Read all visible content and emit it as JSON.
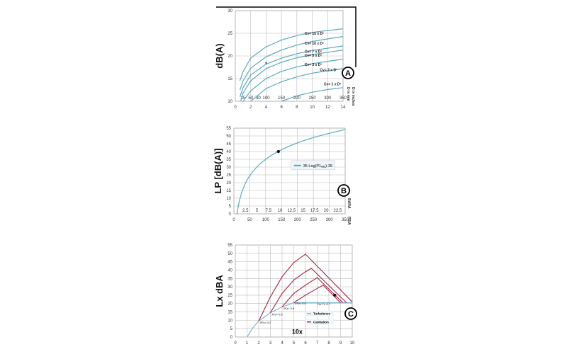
{
  "chart_data": [
    {
      "type": "line",
      "panel": "A",
      "ylabel": "dB(A)",
      "secondary_xlabel": "D in mm",
      "xlabel_right": "D in inches",
      "xlim": [
        0,
        14
      ],
      "ylim": [
        10,
        30
      ],
      "xticks": [
        0,
        2,
        4,
        6,
        8,
        10,
        12,
        14
      ],
      "yticks": [
        10,
        15,
        20,
        25,
        30
      ],
      "secondary_xticks": [
        {
          "x": 1,
          "label": "25"
        },
        {
          "x": 2,
          "label": "50"
        },
        {
          "x": 3,
          "label": "80"
        },
        {
          "x": 4,
          "label": "100"
        },
        {
          "x": 6,
          "label": "150"
        },
        {
          "x": 8,
          "label": "200"
        },
        {
          "x": 10,
          "label": "250"
        },
        {
          "x": 12,
          "label": "300"
        },
        {
          "x": 14,
          "label": "350"
        }
      ],
      "grid": true,
      "color": "#5aa9c0",
      "badge": "A",
      "series": [
        {
          "name": "Cv= 15 x D²",
          "points": [
            [
              0.6,
              14.5
            ],
            [
              1,
              16.5
            ],
            [
              2,
              19.5
            ],
            [
              4,
              22
            ],
            [
              6,
              23.5
            ],
            [
              8,
              24.5
            ],
            [
              10,
              25.2
            ],
            [
              14,
              26
            ]
          ]
        },
        {
          "name": "Cv= 10 x D²",
          "points": [
            [
              0.6,
              12.5
            ],
            [
              1,
              14.5
            ],
            [
              2,
              17.3
            ],
            [
              4,
              19.8
            ],
            [
              6,
              21.3
            ],
            [
              8,
              22.4
            ],
            [
              10,
              23.2
            ],
            [
              14,
              24.3
            ]
          ]
        },
        {
          "name": "Cv= 7 x D²",
          "points": [
            [
              0.6,
              11
            ],
            [
              1,
              13
            ],
            [
              2,
              15.8
            ],
            [
              4,
              18.2
            ],
            [
              6,
              19.5
            ],
            [
              8,
              20.5
            ],
            [
              10,
              21.2
            ],
            [
              14,
              22.2
            ]
          ]
        },
        {
          "name": "Cv= 5 x D²",
          "points": [
            [
              0.7,
              10
            ],
            [
              1,
              11.8
            ],
            [
              2,
              14.5
            ],
            [
              4,
              17.2
            ],
            [
              6,
              18.6
            ],
            [
              8,
              19.6
            ],
            [
              10,
              20.3
            ],
            [
              14,
              21.3
            ]
          ]
        },
        {
          "name": "Cv= 3 x D²",
          "points": [
            [
              1,
              10
            ],
            [
              2,
              12.3
            ],
            [
              4,
              15
            ],
            [
              6,
              16.6
            ],
            [
              8,
              17.6
            ],
            [
              10,
              18.3
            ],
            [
              14,
              19.3
            ]
          ]
        },
        {
          "name": "Cv= 2 x D²",
          "points": [
            [
              2,
              10
            ],
            [
              4,
              12.8
            ],
            [
              6,
              14.3
            ],
            [
              8,
              15.4
            ],
            [
              10,
              16.2
            ],
            [
              14,
              17.2
            ]
          ]
        },
        {
          "name": "Cv= 1 x D²",
          "points": [
            [
              6,
              10
            ],
            [
              8,
              11.2
            ],
            [
              10,
              12
            ],
            [
              12,
              12.6
            ],
            [
              14,
              13
            ]
          ]
        }
      ],
      "marker": {
        "x": 4,
        "y": 18.2,
        "symbol": "*"
      }
    },
    {
      "type": "line",
      "panel": "B",
      "ylabel": "LP [dB(A)]",
      "xlabel_right": "PSIA",
      "secondary_xlabel": "BARA",
      "xlim": [
        0,
        350
      ],
      "ylim": [
        0,
        55
      ],
      "xticks": [
        0,
        50,
        100,
        150,
        200,
        250,
        300,
        350
      ],
      "yticks": [
        0,
        5,
        10,
        15,
        20,
        25,
        30,
        35,
        40,
        45,
        50,
        55
      ],
      "secondary_xticks": [
        "2.5",
        "5",
        "7.5",
        "10",
        "12.5",
        "15",
        "17.5",
        "20",
        "22.5"
      ],
      "grid": true,
      "color": "#5aa9c0",
      "badge": "B",
      "legend": {
        "label": "35 Log(P1ₐₐₐ)-35",
        "position": "center-right"
      },
      "series": [
        {
          "name": "35 Log(P1ₐₐₐ)-35",
          "formula": "35*log10(x)-35",
          "x_start": 10,
          "x_end": 350
        }
      ],
      "marker": {
        "x": 140,
        "y": 40
      }
    },
    {
      "type": "line",
      "panel": "C",
      "ylabel": "Lx dBA",
      "annotation": "10x",
      "xlim": [
        0,
        10
      ],
      "ylim": [
        0,
        55
      ],
      "xticks": [
        0,
        1,
        2,
        3,
        4,
        5,
        6,
        7,
        8,
        9,
        10
      ],
      "yticks": [
        0,
        5,
        10,
        15,
        20,
        25,
        30,
        35,
        40,
        45,
        50,
        55
      ],
      "grid": true,
      "badge": "C",
      "legend": {
        "position": "bottom-right"
      },
      "series": [
        {
          "name": "Turbulence",
          "color": "#7fbcd2",
          "points": [
            [
              1,
              0
            ],
            [
              1.5,
              5.5
            ],
            [
              2,
              9.5
            ],
            [
              3,
              14.5
            ],
            [
              4,
              18
            ],
            [
              5,
              20.5
            ],
            [
              10,
              20.5
            ]
          ]
        },
        {
          "name": "Cavitation",
          "color": "#a8344f",
          "points": [
            [
              2,
              9.5
            ],
            [
              3,
              24
            ],
            [
              4,
              36
            ],
            [
              5,
              44.5
            ],
            [
              6,
              49.5
            ],
            [
              10,
              21
            ]
          ]
        },
        {
          "name": "Cavitation",
          "color": "#a8344f",
          "points": [
            [
              3,
              14.5
            ],
            [
              4,
              26
            ],
            [
              5,
              34
            ],
            [
              6,
              39
            ],
            [
              6.5,
              41
            ],
            [
              9.5,
              20.5
            ]
          ]
        },
        {
          "name": "Cavitation",
          "color": "#a8344f",
          "points": [
            [
              4,
              18
            ],
            [
              5,
              26
            ],
            [
              6,
              31
            ],
            [
              7,
              35.5
            ],
            [
              9.2,
              20.5
            ]
          ]
        },
        {
          "name": "Cavitation",
          "color": "#a8344f",
          "points": [
            [
              5,
              20.5
            ],
            [
              6,
              25
            ],
            [
              7,
              29
            ],
            [
              7.5,
              31
            ],
            [
              9,
              20.5
            ]
          ]
        }
      ],
      "annotations": [
        {
          "x": 2.1,
          "y": 8,
          "text": "XFz= 0.2"
        },
        {
          "x": 3.1,
          "y": 13,
          "text": "XFz= 0.5"
        },
        {
          "x": 4.1,
          "y": 16.5,
          "text": "XFz= 0.6"
        },
        {
          "x": 5.1,
          "y": 19.5,
          "text": "XFz= 0.5"
        },
        {
          "x": 7,
          "y": 19,
          "text": "For Fₗ= 0.7"
        }
      ],
      "marker": {
        "x": 8.5,
        "y": 25
      }
    }
  ]
}
